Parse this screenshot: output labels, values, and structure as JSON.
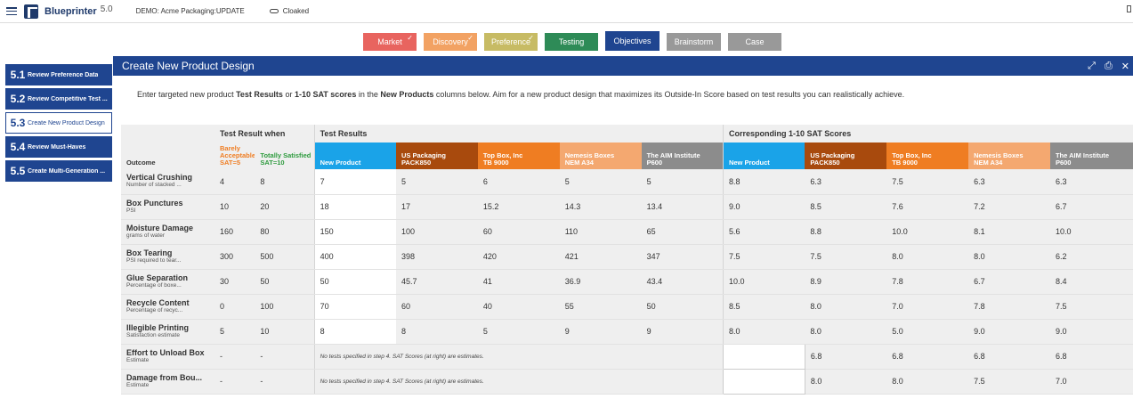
{
  "app": {
    "name": "Blueprinter",
    "version": "5.0",
    "demo": "DEMO: Acme Packaging:UPDATE",
    "cloak": "Cloaked"
  },
  "stages": [
    {
      "label": "Market",
      "color": "#e8645f",
      "check": "✓",
      "width": 60
    },
    {
      "label": "Discovery",
      "color": "#f2a263",
      "check": "✓",
      "width": 60
    },
    {
      "label": "Preference",
      "color": "#c7bb64",
      "check": "✓",
      "width": 60
    },
    {
      "label": "Testing",
      "color": "#2e8b57",
      "check": "",
      "width": 60
    },
    {
      "label": "Objectives",
      "color": "#1f4590",
      "check": "",
      "width": 61
    },
    {
      "label": "Brainstorm",
      "color": "#999999",
      "check": "",
      "width": 61
    },
    {
      "label": "Case",
      "color": "#999999",
      "check": "",
      "width": 60
    }
  ],
  "sidebar": [
    {
      "num": "5.1",
      "label": "Review Preference Data",
      "active": false
    },
    {
      "num": "5.2",
      "label": "Review Competitive Test ...",
      "active": false
    },
    {
      "num": "5.3",
      "label": "Create New Product Design",
      "active": true
    },
    {
      "num": "5.4",
      "label": "Review Must-Haves",
      "active": false
    },
    {
      "num": "5.5",
      "label": "Create Multi-Generation ...",
      "active": false
    }
  ],
  "panel": {
    "title": "Create New Product Design",
    "intro": [
      "Enter targeted new product ",
      "Test Results",
      " or ",
      "1-10 SAT scores",
      " in the ",
      "New Products",
      " columns below. Aim for a new product design that maximizes its Outside-In Score based on test results you can realistically achieve."
    ]
  },
  "table": {
    "outcome_header": "Outcome",
    "test_result_when": "Test Result when",
    "barely": "Barely Acceptable SAT=5",
    "totally": "Totally Satisfied SAT=10",
    "test_results_header": "Test Results",
    "sat_header": "Corresponding 1-10 SAT Scores",
    "products": [
      {
        "name": "New Product",
        "sub": "",
        "color": "#1aa3e8"
      },
      {
        "name": "US Packaging",
        "sub": "PACK850",
        "color": "#a84a0d"
      },
      {
        "name": "Top Box, Inc",
        "sub": "TB 9000",
        "color": "#ef7d22"
      },
      {
        "name": "Nemesis Boxes",
        "sub": "NEM A34",
        "color": "#f4a870"
      },
      {
        "name": "The AIM Institute",
        "sub": "P600",
        "color": "#8c8c8c"
      }
    ],
    "rows": [
      {
        "name": "Vertical Crushing",
        "sub": "Number of stacked ...",
        "barely": "4",
        "totally": "8",
        "tests": [
          "7",
          "5",
          "6",
          "5",
          "5"
        ],
        "sats": [
          "8.8",
          "6.3",
          "7.5",
          "6.3",
          "6.3"
        ],
        "note": ""
      },
      {
        "name": "Box Punctures",
        "sub": "PSI",
        "barely": "10",
        "totally": "20",
        "tests": [
          "18",
          "17",
          "15.2",
          "14.3",
          "13.4"
        ],
        "sats": [
          "9.0",
          "8.5",
          "7.6",
          "7.2",
          "6.7"
        ],
        "note": ""
      },
      {
        "name": "Moisture Damage",
        "sub": "grams of water",
        "barely": "160",
        "totally": "80",
        "tests": [
          "150",
          "100",
          "60",
          "110",
          "65"
        ],
        "sats": [
          "5.6",
          "8.8",
          "10.0",
          "8.1",
          "10.0"
        ],
        "note": ""
      },
      {
        "name": "Box Tearing",
        "sub": "PSI required to tear...",
        "barely": "300",
        "totally": "500",
        "tests": [
          "400",
          "398",
          "420",
          "421",
          "347"
        ],
        "sats": [
          "7.5",
          "7.5",
          "8.0",
          "8.0",
          "6.2"
        ],
        "note": ""
      },
      {
        "name": "Glue Separation",
        "sub": "Percentage of boxe...",
        "barely": "30",
        "totally": "50",
        "tests": [
          "50",
          "45.7",
          "41",
          "36.9",
          "43.4"
        ],
        "sats": [
          "10.0",
          "8.9",
          "7.8",
          "6.7",
          "8.4"
        ],
        "note": ""
      },
      {
        "name": "Recycle Content",
        "sub": "Percentage of recyc...",
        "barely": "0",
        "totally": "100",
        "tests": [
          "70",
          "60",
          "40",
          "55",
          "50"
        ],
        "sats": [
          "8.5",
          "8.0",
          "7.0",
          "7.8",
          "7.5"
        ],
        "note": ""
      },
      {
        "name": "Illegible Printing",
        "sub": "Satisfaction estimate",
        "barely": "5",
        "totally": "10",
        "tests": [
          "8",
          "8",
          "5",
          "9",
          "9"
        ],
        "sats": [
          "8.0",
          "8.0",
          "5.0",
          "9.0",
          "9.0"
        ],
        "note": ""
      },
      {
        "name": "Effort to Unload Box",
        "sub": "Estimate",
        "barely": "-",
        "totally": "-",
        "tests": [],
        "sats": [
          "",
          "6.8",
          "6.8",
          "6.8",
          "6.8"
        ],
        "note": "No tests specified in step 4. SAT Scores (at right) are estimates."
      },
      {
        "name": "Damage from Bou...",
        "sub": "Estimate",
        "barely": "-",
        "totally": "-",
        "tests": [],
        "sats": [
          "",
          "8.0",
          "8.0",
          "7.5",
          "7.0"
        ],
        "note": "No tests specified in step 4. SAT Scores (at right) are estimates."
      }
    ]
  }
}
